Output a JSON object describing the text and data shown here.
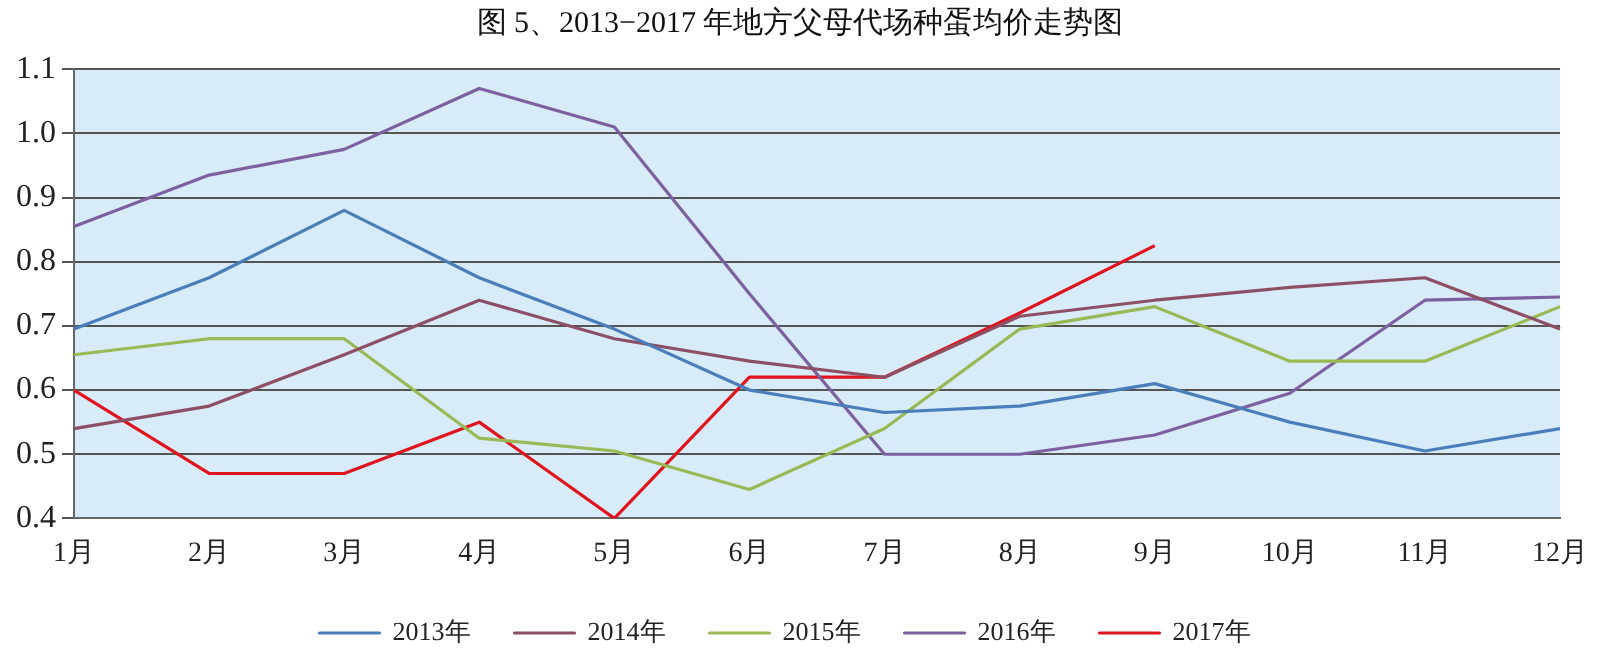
{
  "chart_data": {
    "type": "line",
    "title": "图 5、2013−2017 年地方父母代场种蛋均价走势图",
    "categories": [
      "1月",
      "2月",
      "3月",
      "4月",
      "5月",
      "6月",
      "7月",
      "8月",
      "9月",
      "10月",
      "11月",
      "12月"
    ],
    "series": [
      {
        "name": "2013年",
        "color": "#4a7ebb",
        "values": [
          0.695,
          0.775,
          0.88,
          0.775,
          0.695,
          0.6,
          0.565,
          0.575,
          0.61,
          0.55,
          0.505,
          0.54
        ]
      },
      {
        "name": "2014年",
        "color": "#8c4f64",
        "values": [
          0.54,
          0.575,
          0.655,
          0.74,
          0.68,
          0.645,
          0.62,
          0.715,
          0.74,
          0.76,
          0.775,
          0.695
        ]
      },
      {
        "name": "2015年",
        "color": "#98b954",
        "values": [
          0.655,
          0.68,
          0.68,
          0.525,
          0.505,
          0.445,
          0.54,
          0.695,
          0.73,
          0.645,
          0.645,
          0.73
        ]
      },
      {
        "name": "2016年",
        "color": "#7d60a0",
        "values": [
          0.855,
          0.935,
          0.975,
          1.07,
          1.01,
          0.75,
          0.5,
          0.5,
          0.53,
          0.595,
          0.74,
          0.745
        ]
      },
      {
        "name": "2017年",
        "color": "#e0141c",
        "values": [
          0.6,
          0.47,
          0.47,
          0.55,
          0.4,
          0.62,
          0.62,
          0.72,
          0.825,
          null,
          null,
          null
        ]
      }
    ],
    "ylim": [
      0.4,
      1.1
    ],
    "yticks": [
      {
        "value": 0.4,
        "label": "0.4"
      },
      {
        "value": 0.5,
        "label": "0.5"
      },
      {
        "value": 0.6,
        "label": "0.6"
      },
      {
        "value": 0.7,
        "label": "0.7"
      },
      {
        "value": 0.8,
        "label": "0.8"
      },
      {
        "value": 0.9,
        "label": "0.9"
      },
      {
        "value": 1.0,
        "label": "1.0"
      },
      {
        "value": 1.1,
        "label": "1.1"
      }
    ],
    "grid": "y",
    "legend": "bottom",
    "marker": "none",
    "line_style": "solid"
  }
}
